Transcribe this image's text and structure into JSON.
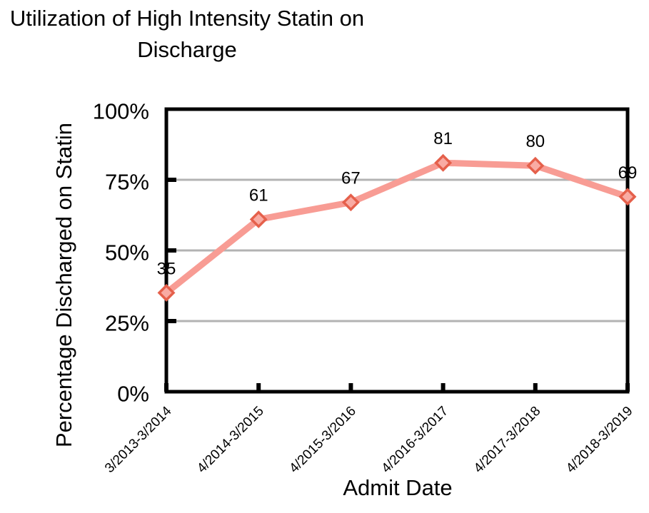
{
  "title": "Utilization of High Intensity Statin on Discharge",
  "chart_data": {
    "type": "line",
    "title": "Utilization of High Intensity Statin on Discharge",
    "xlabel": "Admit Date",
    "ylabel": "Percentage Discharged on Statin",
    "categories": [
      "3/2013-3/2014",
      "4/2014-3/2015",
      "4/2015-3/2016",
      "4/2016-3/2017",
      "4/2017-3/2018",
      "4/2018-3/2019"
    ],
    "values": [
      35,
      61,
      67,
      81,
      80,
      69
    ],
    "data_labels": [
      "35",
      "61",
      "67",
      "81",
      "80",
      "69"
    ],
    "ylim": [
      0,
      100
    ],
    "yticks": [
      {
        "value": 0,
        "label": "0%"
      },
      {
        "value": 25,
        "label": "25%"
      },
      {
        "value": 50,
        "label": "50%"
      },
      {
        "value": 75,
        "label": "75%"
      },
      {
        "value": 100,
        "label": "100%"
      }
    ],
    "gridline_values": [
      25,
      50,
      75
    ],
    "grid": "horizontal",
    "legend": "none",
    "marker": "diamond",
    "colors": {
      "line": "#F89C94",
      "marker_fill": "#F9ABA3",
      "marker_stroke": "#E5604B",
      "gridline": "#B3B3B3",
      "axis": "#000000",
      "text": "#000000"
    }
  }
}
